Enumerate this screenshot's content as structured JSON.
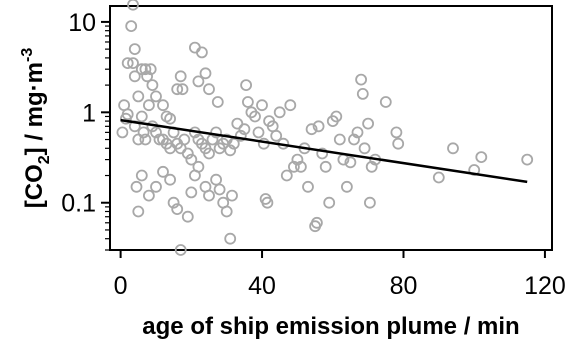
{
  "chart_data": {
    "type": "scatter",
    "title": "",
    "xlabel": "age of ship emission plume / min",
    "ylabel": {
      "prefix": "[CO",
      "sub": "2",
      "suffix": "] / mg·m",
      "sup": "-3"
    },
    "xlim": [
      -3,
      122
    ],
    "ylim": [
      0.03,
      15
    ],
    "yscale": "log",
    "x_ticks": [
      0,
      40,
      80,
      120
    ],
    "y_ticks": [
      0.1,
      1,
      10
    ],
    "x_tick_labels": [
      "0",
      "40",
      "80",
      "120"
    ],
    "y_tick_labels": [
      "0.1",
      "1",
      "10"
    ],
    "grid": false,
    "legend": "none",
    "colors": {
      "points": "#a8a8a8",
      "trend": "#000000",
      "axes": "#000000"
    },
    "trend_line": {
      "x": [
        0,
        115
      ],
      "y": [
        0.82,
        0.17
      ]
    },
    "series": [
      {
        "points": [
          [
            3.5,
            15.5
          ],
          [
            3,
            9
          ],
          [
            4,
            5
          ],
          [
            2,
            3.5
          ],
          [
            3.5,
            3.5
          ],
          [
            4,
            2.5
          ],
          [
            5,
            1.5
          ],
          [
            6,
            3
          ],
          [
            7,
            3
          ],
          [
            7.5,
            2.5
          ],
          [
            8.5,
            3
          ],
          [
            9,
            2
          ],
          [
            10,
            1.5
          ],
          [
            12,
            1.2
          ],
          [
            13,
            0.9
          ],
          [
            14,
            0.85
          ],
          [
            16,
            1.8
          ],
          [
            17,
            2.5
          ],
          [
            17.5,
            1.8
          ],
          [
            21,
            5.2
          ],
          [
            22,
            2.2
          ],
          [
            23,
            4.6
          ],
          [
            24,
            2.7
          ],
          [
            25,
            1.8
          ],
          [
            27.5,
            1.3
          ],
          [
            0.5,
            0.6
          ],
          [
            1,
            1.2
          ],
          [
            1.5,
            0.85
          ],
          [
            2,
            0.95
          ],
          [
            4,
            0.7
          ],
          [
            5,
            0.5
          ],
          [
            6,
            0.9
          ],
          [
            6.5,
            0.6
          ],
          [
            7,
            0.5
          ],
          [
            8,
            1.2
          ],
          [
            9,
            0.7
          ],
          [
            10,
            0.6
          ],
          [
            11,
            0.5
          ],
          [
            12,
            0.5
          ],
          [
            13,
            0.45
          ],
          [
            14,
            0.4
          ],
          [
            15,
            0.6
          ],
          [
            16,
            0.45
          ],
          [
            17,
            0.4
          ],
          [
            18,
            0.5
          ],
          [
            19,
            0.35
          ],
          [
            20,
            0.3
          ],
          [
            21,
            0.6
          ],
          [
            22,
            0.5
          ],
          [
            23,
            0.45
          ],
          [
            24,
            0.4
          ],
          [
            25,
            0.35
          ],
          [
            26,
            0.5
          ],
          [
            27,
            0.6
          ],
          [
            28,
            0.4
          ],
          [
            29,
            0.45
          ],
          [
            30,
            0.5
          ],
          [
            31,
            0.38
          ],
          [
            32,
            0.45
          ],
          [
            4.5,
            0.15
          ],
          [
            5,
            0.08
          ],
          [
            6,
            0.2
          ],
          [
            8,
            0.12
          ],
          [
            10,
            0.15
          ],
          [
            12,
            0.22
          ],
          [
            14,
            0.18
          ],
          [
            15,
            0.1
          ],
          [
            16,
            0.085
          ],
          [
            17,
            0.03
          ],
          [
            19,
            0.07
          ],
          [
            20,
            0.13
          ],
          [
            21,
            0.2
          ],
          [
            22,
            0.25
          ],
          [
            24,
            0.15
          ],
          [
            25,
            0.12
          ],
          [
            27,
            0.18
          ],
          [
            28,
            0.14
          ],
          [
            29,
            0.1
          ],
          [
            30,
            0.08
          ],
          [
            31,
            0.04
          ],
          [
            31.5,
            0.12
          ],
          [
            33,
            0.75
          ],
          [
            34,
            0.55
          ],
          [
            35,
            0.65
          ],
          [
            35.5,
            2
          ],
          [
            36,
            1.3
          ],
          [
            37,
            1
          ],
          [
            38,
            0.9
          ],
          [
            39,
            0.6
          ],
          [
            40,
            1.2
          ],
          [
            40.5,
            0.45
          ],
          [
            41,
            0.11
          ],
          [
            41.5,
            0.1
          ],
          [
            42,
            0.8
          ],
          [
            43,
            0.7
          ],
          [
            44,
            0.55
          ],
          [
            45,
            1
          ],
          [
            46,
            0.45
          ],
          [
            47,
            0.2
          ],
          [
            48,
            1.2
          ],
          [
            49,
            0.25
          ],
          [
            50,
            0.3
          ],
          [
            51,
            0.25
          ],
          [
            52,
            0.4
          ],
          [
            53,
            0.15
          ],
          [
            54,
            0.65
          ],
          [
            55,
            0.055
          ],
          [
            55.5,
            0.06
          ],
          [
            56,
            0.7
          ],
          [
            57,
            0.35
          ],
          [
            58,
            0.25
          ],
          [
            59,
            0.1
          ],
          [
            60,
            0.8
          ],
          [
            61,
            0.9
          ],
          [
            62,
            0.5
          ],
          [
            63,
            0.3
          ],
          [
            64,
            0.15
          ],
          [
            65,
            0.28
          ],
          [
            66,
            0.5
          ],
          [
            67,
            0.6
          ],
          [
            68,
            2.3
          ],
          [
            68.5,
            1.6
          ],
          [
            69,
            0.4
          ],
          [
            70,
            0.75
          ],
          [
            70.5,
            0.1
          ],
          [
            71,
            0.25
          ],
          [
            72,
            0.3
          ],
          [
            75,
            1.3
          ],
          [
            78,
            0.6
          ],
          [
            78.5,
            0.45
          ],
          [
            90,
            0.19
          ],
          [
            94,
            0.4
          ],
          [
            100,
            0.23
          ],
          [
            102,
            0.32
          ],
          [
            115,
            0.3
          ]
        ]
      }
    ]
  }
}
